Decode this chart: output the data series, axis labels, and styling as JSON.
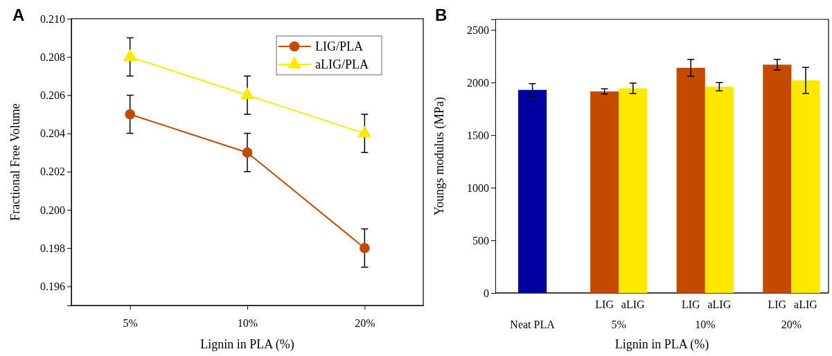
{
  "chart_data": [
    {
      "type": "line",
      "categories": [
        "5%",
        "10%",
        "20%"
      ],
      "xlabel": "Lignin in PLA (%)",
      "ylabel": "Fractional Free Volume",
      "ylim": [
        0.195,
        0.21
      ],
      "yticks": [
        0.196,
        0.198,
        {
          "value": 0.2,
          "label": "0.200"
        },
        0.202,
        0.204,
        0.206,
        0.208,
        {
          "value": 0.21,
          "label": "0.210"
        }
      ],
      "legend": "top right",
      "annotations": [
        "A"
      ],
      "series": [
        {
          "name": "LIG/PLA",
          "color": "#c44a00",
          "marker": "circle",
          "values": [
            0.205,
            0.203,
            0.198
          ],
          "errors": [
            0.001,
            0.001,
            0.001
          ]
        },
        {
          "name": "aLIG/PLA",
          "color": "#ffe800",
          "marker": "triangle",
          "values": [
            0.208,
            0.206,
            0.204
          ],
          "errors": [
            0.001,
            0.001,
            0.001
          ]
        }
      ]
    },
    {
      "type": "bar",
      "categories": [
        "Neat PLA",
        "5%",
        "10%",
        "20%"
      ],
      "xlabel": "Lignin in PLA (%)",
      "ylabel": "Youngs modulus (MPa)",
      "ylim": [
        0,
        2600
      ],
      "yticks": [
        0,
        500,
        1000,
        1500,
        2000,
        2500
      ],
      "annotations": [
        "B"
      ],
      "series": [
        {
          "color": "#0000a0",
          "values": [
            1930,
            null,
            null,
            null
          ],
          "errors": [
            60,
            null,
            null,
            null
          ]
        },
        {
          "name": "LIG",
          "color": "#c44a00",
          "values": [
            null,
            1915,
            2140,
            2170
          ],
          "errors": [
            null,
            25,
            80,
            50
          ]
        },
        {
          "name": "aLIG",
          "color": "#ffe800",
          "values": [
            null,
            1945,
            1960,
            2020
          ],
          "errors": [
            null,
            50,
            40,
            125
          ]
        }
      ]
    }
  ]
}
